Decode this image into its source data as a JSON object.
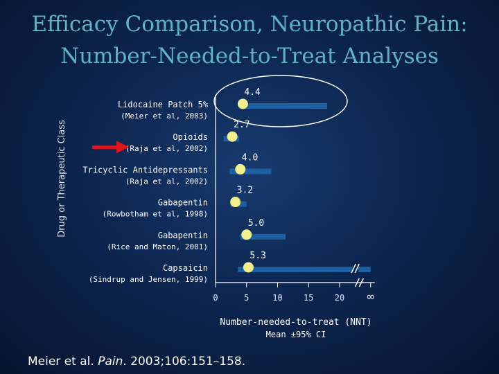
{
  "title_line1": "Efficacy Comparison, Neuropathic Pain:",
  "title_line2": "Number-Needed-to-Treat Analyses",
  "citation": {
    "prefix": "Meier et al. ",
    "journal": "Pain",
    "suffix": ". 2003;106:151–158."
  },
  "colors": {
    "title": "#5fb3c3",
    "bar": "#1d5fa0",
    "marker": "#f2ee8a",
    "arrow": "#e0141c",
    "text": "#ffffff",
    "axis_text": "#dfe8f5"
  },
  "chart_data": {
    "type": "scatter",
    "title": "Efficacy Comparison, Neuropathic Pain: Number-Needed-to-Treat Analyses",
    "xlabel": "Number-needed-to-treat (NNT)",
    "xlabel_sub": "Mean ±95% CI",
    "ylabel": "Drug or Therapeutic Class",
    "xlim": [
      0,
      25
    ],
    "xticks": [
      {
        "value": 0,
        "label": "0"
      },
      {
        "value": 5,
        "label": "5"
      },
      {
        "value": 10,
        "label": "10"
      },
      {
        "value": 15,
        "label": "15"
      },
      {
        "value": 20,
        "label": "20"
      },
      {
        "value": 25,
        "label": "∞"
      }
    ],
    "axis_break_between": [
      20,
      25
    ],
    "highlight": {
      "category": "Lidocaine Patch 5%",
      "shape": "ellipse",
      "color": "#ffffff"
    },
    "arrow_points_to": "Opioids",
    "categories": [
      {
        "name": "Lidocaine Patch 5%",
        "source": "(Meier et al, 2003)",
        "nnt": 4.4,
        "nnt_label": "4.4",
        "ci": [
          4.2,
          18.0
        ],
        "ci_break": false
      },
      {
        "name": "Opioids",
        "source": "(Raja et al, 2002)",
        "nnt": 2.7,
        "nnt_label": "2.7",
        "ci": [
          1.3,
          3.8
        ],
        "ci_break": false
      },
      {
        "name": "Tricyclic Antidepressants",
        "source": "(Raja et al, 2002)",
        "nnt": 4.0,
        "nnt_label": "4.0",
        "ci": [
          2.3,
          9.0
        ],
        "ci_break": false
      },
      {
        "name": "Gabapentin",
        "source": "(Rowbotham et al, 1998)",
        "nnt": 3.2,
        "nnt_label": "3.2",
        "ci": [
          2.4,
          5.0
        ],
        "ci_break": false
      },
      {
        "name": "Gabapentin",
        "source": "(Rice and Maton, 2001)",
        "nnt": 5.0,
        "nnt_label": "5.0",
        "ci": [
          4.0,
          11.3
        ],
        "ci_break": false
      },
      {
        "name": "Capsaicin",
        "source": "(Sindrup and Jensen, 1999)",
        "nnt": 5.3,
        "nnt_label": "5.3",
        "ci": [
          3.6,
          25.0
        ],
        "ci_break": true
      }
    ]
  }
}
